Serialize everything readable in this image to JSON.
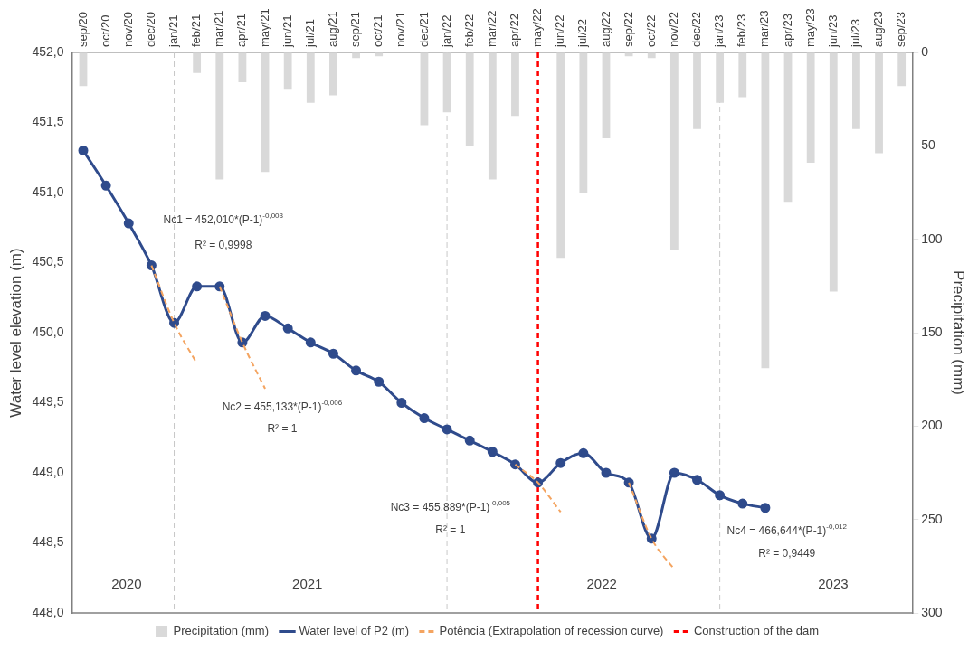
{
  "chart_data": {
    "type": "line",
    "categories": [
      "sep/20",
      "oct/20",
      "nov/20",
      "dec/20",
      "jan/21",
      "feb/21",
      "mar/21",
      "apr/21",
      "may/21",
      "jun/21",
      "jul/21",
      "aug/21",
      "sep/21",
      "oct/21",
      "nov/21",
      "dec/21",
      "jan/22",
      "feb/22",
      "mar/22",
      "apr/22",
      "may/22",
      "jun/22",
      "jul/22",
      "aug/22",
      "sep/22",
      "oct/22",
      "nov/22",
      "dec/22",
      "jan/23",
      "feb/23",
      "mar/23",
      "apr/23",
      "may/23",
      "jun/23",
      "jul/23",
      "aug/23",
      "sep/23"
    ],
    "series": [
      {
        "name": "Precipitation (mm)",
        "type": "bar",
        "axis": "y2",
        "color": "#d9d9d9",
        "values": [
          18,
          0,
          0,
          0,
          0,
          11,
          68,
          16,
          64,
          20,
          27,
          23,
          3,
          2,
          0,
          39,
          32,
          50,
          68,
          34,
          0,
          110,
          75,
          46,
          2,
          3,
          106,
          41,
          27,
          24,
          169,
          80,
          59,
          128,
          41,
          54,
          18
        ]
      },
      {
        "name": "Water level of P2 (m)",
        "color": "#2f4b8c",
        "values": [
          451.3,
          451.05,
          450.78,
          450.48,
          450.07,
          450.33,
          450.33,
          449.93,
          450.12,
          450.03,
          449.93,
          449.85,
          449.73,
          449.65,
          449.5,
          449.39,
          449.31,
          449.23,
          449.15,
          449.06,
          448.93,
          449.07,
          449.14,
          449.0,
          448.93,
          448.53,
          449.0,
          448.95,
          448.84,
          448.78,
          448.75,
          null,
          null,
          null,
          null,
          null,
          null
        ]
      },
      {
        "name": "Potência (Extrapolation of recession curve)",
        "line_style": "dashed",
        "marker": "none",
        "color": "#f4a460",
        "x": [
          "dec/20",
          "jan/21",
          "feb/21"
        ],
        "values": [
          450.48,
          450.07,
          449.78
        ]
      },
      {
        "line_style": "dashed",
        "marker": "none",
        "color": "#f4a460",
        "x": [
          "mar/21",
          "apr/21",
          "may/21"
        ],
        "values": [
          450.33,
          449.93,
          449.6
        ]
      },
      {
        "line_style": "dashed",
        "marker": "none",
        "color": "#f4a460",
        "x": [
          "apr/22",
          "may/22",
          "jun/22"
        ],
        "values": [
          449.06,
          448.93,
          448.72
        ]
      },
      {
        "line_style": "dashed",
        "marker": "none",
        "color": "#f4a460",
        "x": [
          "sep/22",
          "oct/22",
          "nov/22"
        ],
        "values": [
          448.93,
          448.53,
          448.31
        ]
      }
    ],
    "ylabel": "Water level elevation (m)",
    "y2label": "Precipitation (mm)",
    "ylim": [
      448,
      452
    ],
    "yticks": [
      {
        "value": 448,
        "label": "448,0"
      },
      {
        "value": 448.5,
        "label": "448,5"
      },
      {
        "value": 449,
        "label": "449,0"
      },
      {
        "value": 449.5,
        "label": "449,5"
      },
      {
        "value": 450,
        "label": "450,0"
      },
      {
        "value": 450.5,
        "label": "450,5"
      },
      {
        "value": 451,
        "label": "451,0"
      },
      {
        "value": 451.5,
        "label": "451,5"
      },
      {
        "value": 452,
        "label": "452,0"
      }
    ],
    "y2lim": [
      300,
      0
    ],
    "y2ticks": [
      0,
      50,
      100,
      150,
      200,
      250,
      300
    ],
    "ref_lines": [
      {
        "axis": "x",
        "value": "may/22",
        "label": "Construction of the dam",
        "color": "#ff0000",
        "line_style": "dashed"
      },
      {
        "axis": "x",
        "value": "jan/21",
        "color": "#c8c8c8",
        "line_style": "dashed"
      },
      {
        "axis": "x",
        "value": "jan/22",
        "color": "#c8c8c8",
        "line_style": "dashed"
      },
      {
        "axis": "x",
        "value": "jan/23",
        "color": "#c8c8c8",
        "line_style": "dashed"
      }
    ],
    "annotations": [
      "Nc1 = 452,010*(P-1)$^{-0,003}$",
      "R² = 0,9998",
      "Nc2 = 455,133*(P-1)$^{-0,006}$",
      "R² = 1",
      "Nc3 = 455,889*(P-1)$^{-0,005}$",
      "R² = 1",
      "Nc4 = 466,644*(P-1)$^{-0,012}$",
      "R² = 0,9449",
      "2020",
      "2021",
      "2022",
      "2023"
    ],
    "marker": "circle",
    "line_style": "solid",
    "grid": false,
    "legend": "bottom"
  }
}
